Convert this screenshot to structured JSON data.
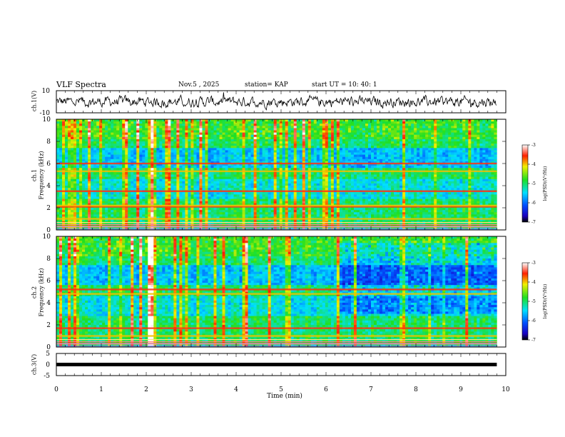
{
  "header": {
    "title": "VLF Spectra",
    "date": "Nov.5  , 2025",
    "station": "station= KAP",
    "start": "start  UT  =   10: 40: 1"
  },
  "chart_data": [
    {
      "type": "line",
      "panel": "waveform",
      "ylabel": "ch.1(V)",
      "ylim": [
        -10,
        10
      ],
      "ytick_labels": [
        "10",
        "-10"
      ],
      "note": "noisy waveform trace fluctuating roughly between -5 and +5 V over 0-9.8 min"
    },
    {
      "type": "heatmap",
      "panel": "ch1-spectrogram",
      "ylabel": "ch.1\nFrequency (kHz)",
      "ylabel_line1": "ch.1",
      "ylabel_line2": "Frequency (kHz)",
      "ylim": [
        0,
        10
      ],
      "ytick_labels": [
        "0",
        "2",
        "4",
        "6",
        "8",
        "10"
      ],
      "colorbar": {
        "label": "log(PSD)(V²/Hz)",
        "range": [
          -7,
          -3
        ],
        "tick_labels": [
          "-3",
          "-4",
          "-5",
          "-6",
          "-7"
        ]
      },
      "bands_khz": [
        0.3,
        1.0,
        2.1,
        2.2,
        3.5,
        5.3,
        6.0
      ],
      "broadband_event_min": 2.1
    },
    {
      "type": "heatmap",
      "panel": "ch2-spectrogram",
      "ylabel_line1": "ch.2",
      "ylabel_line2": "Frequency (kHz)",
      "ylim": [
        0,
        10
      ],
      "ytick_labels": [
        "0",
        "2",
        "4",
        "6",
        "8",
        "10"
      ],
      "colorbar": {
        "label": "log(PSD)(V²/Hz)",
        "range": [
          -7,
          -3
        ],
        "tick_labels": [
          "-3",
          "-4",
          "-5",
          "-6",
          "-7"
        ]
      },
      "bands_khz": [
        0.3,
        1.0,
        1.7,
        4.8,
        5.2
      ],
      "broadband_event_min": 2.1
    },
    {
      "type": "line",
      "panel": "ch3",
      "ylabel": "ch.3(V)",
      "ylim": [
        -5,
        5
      ],
      "ytick_labels": [
        "5",
        "0",
        "-5"
      ],
      "value": 0,
      "xlim": [
        0,
        9.8
      ]
    }
  ],
  "xaxis": {
    "label": "Time  (min)",
    "tick_labels": [
      "0",
      "1",
      "2",
      "3",
      "4",
      "5",
      "6",
      "7",
      "8",
      "9",
      "10"
    ],
    "range": [
      0,
      10
    ],
    "data_end": 9.8
  },
  "colors": {
    "frame": "#000000"
  }
}
